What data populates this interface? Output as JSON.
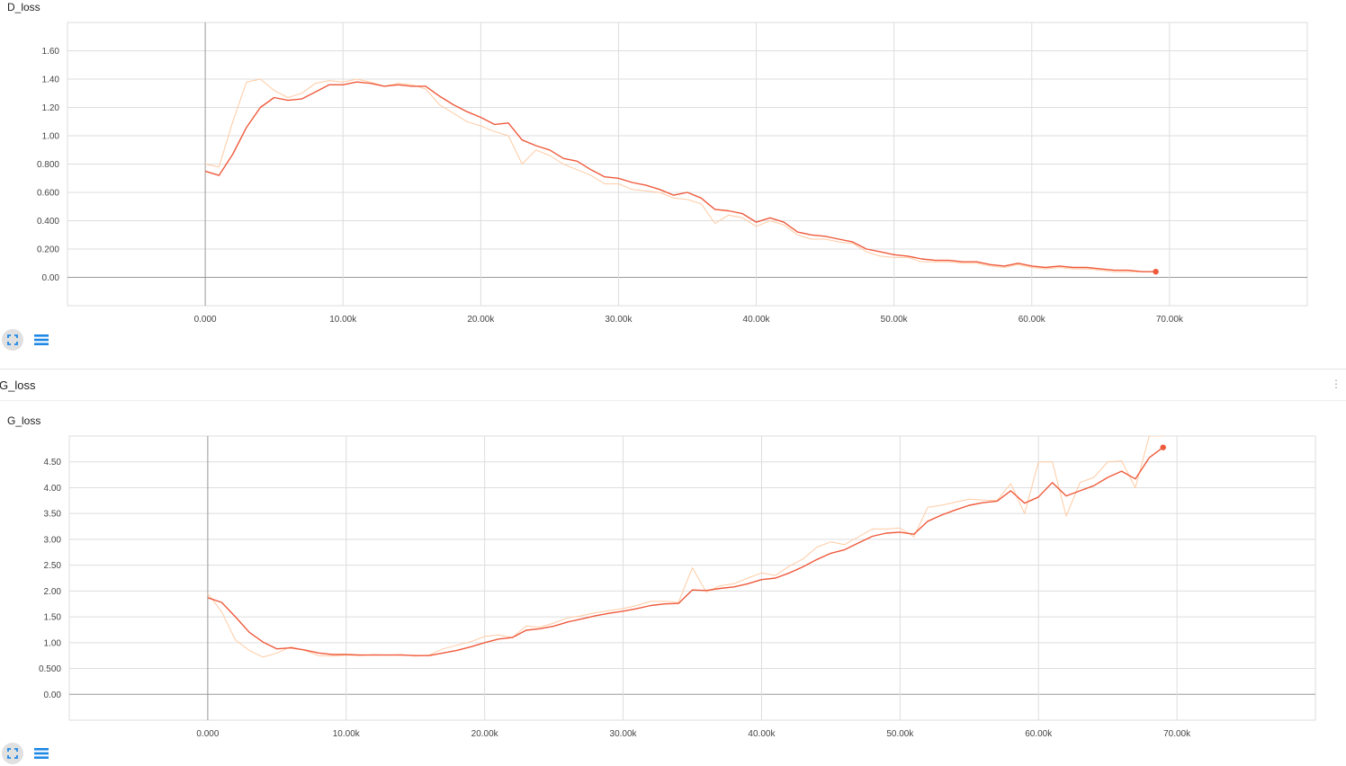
{
  "group": {
    "title": "G_loss",
    "menu_icon": "more-vert-icon"
  },
  "controls": {
    "expand_icon": "fullscreen-icon",
    "data_icon": "list-icon"
  },
  "colors": {
    "smoothed": "#ef5a3c",
    "raw": "#ffcba3",
    "grid": "#dddddd",
    "axis": "#999999",
    "expand_bg": "#e0e0e0",
    "data_icon": "#1e88e5"
  },
  "chart_data": [
    {
      "type": "line",
      "title": "D_loss",
      "xlim": [
        -10000,
        80000
      ],
      "ylim": [
        -0.2,
        1.8
      ],
      "xticks": [
        0,
        10000,
        20000,
        30000,
        40000,
        50000,
        60000,
        70000
      ],
      "xtick_labels": [
        "0.000",
        "10.00k",
        "20.00k",
        "30.00k",
        "40.00k",
        "50.00k",
        "60.00k",
        "70.00k"
      ],
      "yticks": [
        0,
        0.2,
        0.4,
        0.6,
        0.8,
        1.0,
        1.2,
        1.4,
        1.6
      ],
      "ytick_labels": [
        "0.00",
        "0.200",
        "0.400",
        "0.600",
        "0.800",
        "1.00",
        "1.20",
        "1.40",
        "1.60"
      ],
      "grid": true,
      "series": [
        {
          "role": "smoothed",
          "x": [
            0,
            1000,
            2000,
            3000,
            4000,
            5000,
            6000,
            7000,
            8000,
            9000,
            10000,
            11000,
            12000,
            13000,
            14000,
            15000,
            16000,
            17000,
            18000,
            19000,
            20000,
            21000,
            22000,
            23000,
            24000,
            25000,
            26000,
            27000,
            28000,
            29000,
            30000,
            31000,
            32000,
            33000,
            34000,
            35000,
            36000,
            37000,
            38000,
            39000,
            40000,
            41000,
            42000,
            43000,
            44000,
            45000,
            46000,
            47000,
            48000,
            49000,
            50000,
            51000,
            52000,
            53000,
            54000,
            55000,
            56000,
            57000,
            58000,
            59000,
            60000,
            61000,
            62000,
            63000,
            64000,
            65000,
            66000,
            67000,
            68000,
            69000
          ],
          "y": [
            0.75,
            0.72,
            0.87,
            1.06,
            1.2,
            1.27,
            1.25,
            1.26,
            1.31,
            1.36,
            1.36,
            1.38,
            1.37,
            1.35,
            1.36,
            1.35,
            1.35,
            1.28,
            1.22,
            1.17,
            1.13,
            1.08,
            1.09,
            0.97,
            0.93,
            0.9,
            0.84,
            0.82,
            0.76,
            0.71,
            0.7,
            0.67,
            0.65,
            0.62,
            0.58,
            0.6,
            0.56,
            0.48,
            0.47,
            0.45,
            0.39,
            0.42,
            0.39,
            0.32,
            0.3,
            0.29,
            0.27,
            0.25,
            0.2,
            0.18,
            0.16,
            0.15,
            0.13,
            0.12,
            0.12,
            0.11,
            0.11,
            0.09,
            0.08,
            0.1,
            0.08,
            0.07,
            0.08,
            0.07,
            0.07,
            0.06,
            0.05,
            0.05,
            0.04,
            0.04
          ]
        },
        {
          "role": "raw",
          "x": [
            0,
            1000,
            2000,
            3000,
            4000,
            5000,
            6000,
            7000,
            8000,
            9000,
            10000,
            11000,
            12000,
            13000,
            14000,
            15000,
            16000,
            17000,
            18000,
            19000,
            20000,
            21000,
            22000,
            23000,
            24000,
            25000,
            26000,
            27000,
            28000,
            29000,
            30000,
            31000,
            32000,
            33000,
            34000,
            35000,
            36000,
            37000,
            38000,
            39000,
            40000,
            41000,
            42000,
            43000,
            44000,
            45000,
            46000,
            47000,
            48000,
            49000,
            50000,
            51000,
            52000,
            53000,
            54000,
            55000,
            56000,
            57000,
            58000,
            59000,
            60000,
            61000,
            62000,
            63000,
            64000,
            65000,
            66000,
            67000,
            68000,
            69000
          ],
          "y": [
            0.8,
            0.78,
            1.1,
            1.38,
            1.4,
            1.32,
            1.27,
            1.3,
            1.37,
            1.39,
            1.38,
            1.4,
            1.38,
            1.35,
            1.37,
            1.36,
            1.33,
            1.22,
            1.16,
            1.1,
            1.07,
            1.03,
            1.0,
            0.8,
            0.9,
            0.86,
            0.8,
            0.76,
            0.72,
            0.66,
            0.66,
            0.62,
            0.61,
            0.6,
            0.56,
            0.55,
            0.52,
            0.38,
            0.44,
            0.42,
            0.36,
            0.4,
            0.37,
            0.3,
            0.27,
            0.27,
            0.25,
            0.24,
            0.18,
            0.15,
            0.14,
            0.14,
            0.11,
            0.11,
            0.11,
            0.1,
            0.1,
            0.08,
            0.07,
            0.09,
            0.07,
            0.06,
            0.07,
            0.06,
            0.06,
            0.05,
            0.04,
            0.04,
            0.04,
            0.04
          ]
        }
      ]
    },
    {
      "type": "line",
      "title": "G_loss",
      "xlim": [
        -10000,
        80000
      ],
      "ylim": [
        -0.5,
        5.0
      ],
      "xticks": [
        0,
        10000,
        20000,
        30000,
        40000,
        50000,
        60000,
        70000
      ],
      "xtick_labels": [
        "0.000",
        "10.00k",
        "20.00k",
        "30.00k",
        "40.00k",
        "50.00k",
        "60.00k",
        "70.00k"
      ],
      "yticks": [
        0,
        0.5,
        1.0,
        1.5,
        2.0,
        2.5,
        3.0,
        3.5,
        4.0,
        4.5
      ],
      "ytick_labels": [
        "0.00",
        "0.500",
        "1.00",
        "1.50",
        "2.00",
        "2.50",
        "3.00",
        "3.50",
        "4.00",
        "4.50"
      ],
      "grid": true,
      "series": [
        {
          "role": "smoothed",
          "x": [
            0,
            1000,
            2000,
            3000,
            4000,
            5000,
            6000,
            7000,
            8000,
            9000,
            10000,
            11000,
            12000,
            13000,
            14000,
            15000,
            16000,
            17000,
            18000,
            19000,
            20000,
            21000,
            22000,
            23000,
            24000,
            25000,
            26000,
            27000,
            28000,
            29000,
            30000,
            31000,
            32000,
            33000,
            34000,
            35000,
            36000,
            37000,
            38000,
            39000,
            40000,
            41000,
            42000,
            43000,
            44000,
            45000,
            46000,
            47000,
            48000,
            49000,
            50000,
            51000,
            52000,
            53000,
            54000,
            55000,
            56000,
            57000,
            58000,
            59000,
            60000,
            61000,
            62000,
            63000,
            64000,
            65000,
            66000,
            67000,
            68000,
            69000
          ],
          "y": [
            1.87,
            1.78,
            1.5,
            1.2,
            1.01,
            0.88,
            0.9,
            0.86,
            0.8,
            0.77,
            0.77,
            0.76,
            0.76,
            0.76,
            0.76,
            0.75,
            0.75,
            0.8,
            0.85,
            0.92,
            1.0,
            1.07,
            1.1,
            1.24,
            1.27,
            1.32,
            1.4,
            1.46,
            1.52,
            1.57,
            1.61,
            1.66,
            1.72,
            1.75,
            1.76,
            2.02,
            2.01,
            2.05,
            2.08,
            2.14,
            2.22,
            2.25,
            2.35,
            2.47,
            2.61,
            2.73,
            2.8,
            2.93,
            3.06,
            3.12,
            3.14,
            3.1,
            3.35,
            3.47,
            3.57,
            3.66,
            3.71,
            3.74,
            3.94,
            3.7,
            3.82,
            4.1,
            3.84,
            3.94,
            4.04,
            4.2,
            4.32,
            4.17,
            4.58,
            4.78
          ]
        },
        {
          "role": "raw",
          "x": [
            0,
            1000,
            2000,
            3000,
            4000,
            5000,
            6000,
            7000,
            8000,
            9000,
            10000,
            11000,
            12000,
            13000,
            14000,
            15000,
            16000,
            17000,
            18000,
            19000,
            20000,
            21000,
            22000,
            23000,
            24000,
            25000,
            26000,
            27000,
            28000,
            29000,
            30000,
            31000,
            32000,
            33000,
            34000,
            35000,
            36000,
            37000,
            38000,
            39000,
            40000,
            41000,
            42000,
            43000,
            44000,
            45000,
            46000,
            47000,
            48000,
            49000,
            50000,
            51000,
            52000,
            53000,
            54000,
            55000,
            56000,
            57000,
            58000,
            59000,
            60000,
            61000,
            62000,
            63000,
            64000,
            65000,
            66000,
            67000,
            68000,
            69000
          ],
          "y": [
            1.95,
            1.6,
            1.05,
            0.85,
            0.72,
            0.8,
            0.92,
            0.85,
            0.75,
            0.74,
            0.76,
            0.75,
            0.77,
            0.76,
            0.77,
            0.74,
            0.76,
            0.88,
            0.95,
            1.02,
            1.12,
            1.15,
            1.1,
            1.32,
            1.3,
            1.38,
            1.48,
            1.52,
            1.58,
            1.62,
            1.66,
            1.72,
            1.8,
            1.8,
            1.78,
            2.45,
            1.98,
            2.1,
            2.14,
            2.25,
            2.35,
            2.3,
            2.48,
            2.62,
            2.85,
            2.95,
            2.9,
            3.05,
            3.2,
            3.2,
            3.22,
            3.05,
            3.62,
            3.66,
            3.72,
            3.78,
            3.76,
            3.75,
            4.08,
            3.5,
            4.5,
            4.5,
            3.45,
            4.1,
            4.2,
            4.5,
            4.52,
            4.0,
            5.0,
            5.0
          ]
        }
      ]
    }
  ]
}
